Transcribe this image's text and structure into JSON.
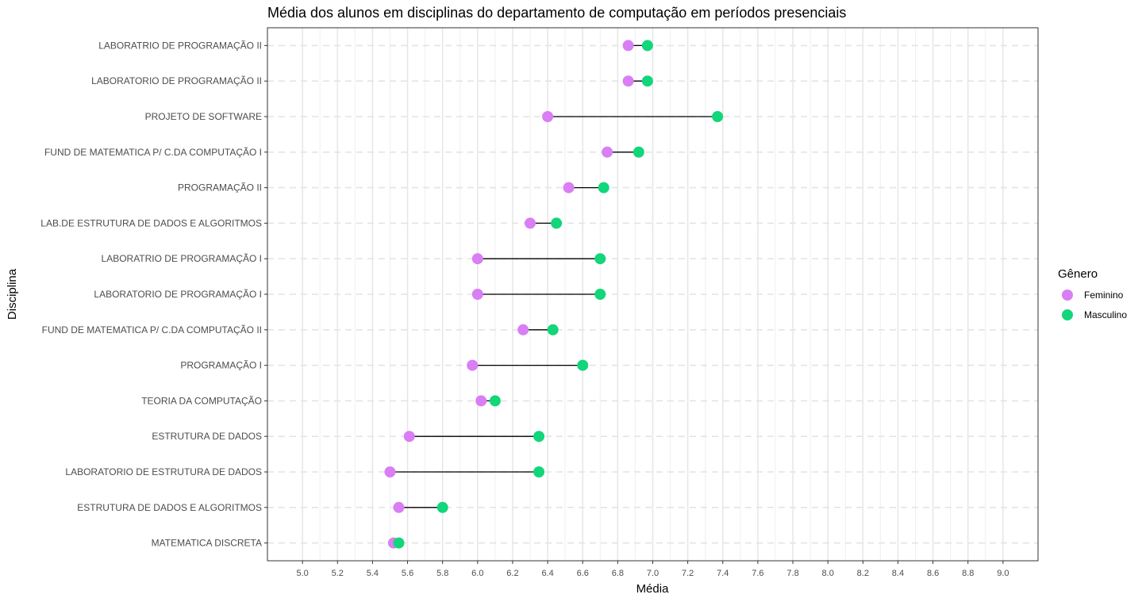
{
  "chart_data": {
    "type": "dumbbell",
    "title": "Média dos alunos em disciplinas do departamento de computação em períodos presenciais",
    "xlabel": "Média",
    "ylabel": "Disciplina",
    "xlim": [
      4.8,
      9.2
    ],
    "x_ticks": [
      "5.0",
      "5.2",
      "5.4",
      "5.6",
      "5.8",
      "6.0",
      "6.2",
      "6.4",
      "6.6",
      "6.8",
      "7.0",
      "7.2",
      "7.4",
      "7.6",
      "7.8",
      "8.0",
      "8.2",
      "8.4",
      "8.6",
      "8.8",
      "9.0"
    ],
    "grid": true,
    "legend": {
      "title": "Gênero",
      "position": "right"
    },
    "categories": [
      "LABORATRIO DE PROGRAMAÇÃO II",
      "LABORATORIO DE PROGRAMAÇÃO II",
      "PROJETO DE SOFTWARE",
      "FUND DE MATEMATICA P/ C.DA COMPUTAÇÃO I",
      "PROGRAMAÇÃO II",
      "LAB.DE ESTRUTURA DE DADOS E ALGORITMOS",
      "LABORATRIO DE PROGRAMAÇÃO I",
      "LABORATORIO DE PROGRAMAÇÃO I",
      "FUND DE MATEMATICA P/ C.DA COMPUTAÇÃO II",
      "PROGRAMAÇÃO I",
      "TEORIA DA COMPUTAÇÃO",
      "ESTRUTURA DE DADOS",
      "LABORATORIO DE ESTRUTURA DE DADOS",
      "ESTRUTURA DE DADOS E ALGORITMOS",
      "MATEMATICA DISCRETA"
    ],
    "series": [
      {
        "name": "Feminino",
        "color": "#d97ef4",
        "values": [
          6.86,
          6.86,
          6.4,
          6.74,
          6.52,
          6.3,
          6.0,
          6.0,
          6.26,
          5.97,
          6.02,
          5.61,
          5.5,
          5.55,
          5.52
        ]
      },
      {
        "name": "Masculino",
        "color": "#12d67a",
        "values": [
          6.97,
          6.97,
          7.37,
          6.92,
          6.72,
          6.45,
          6.7,
          6.7,
          6.43,
          6.6,
          6.1,
          6.35,
          6.35,
          5.8,
          5.55
        ]
      }
    ]
  }
}
